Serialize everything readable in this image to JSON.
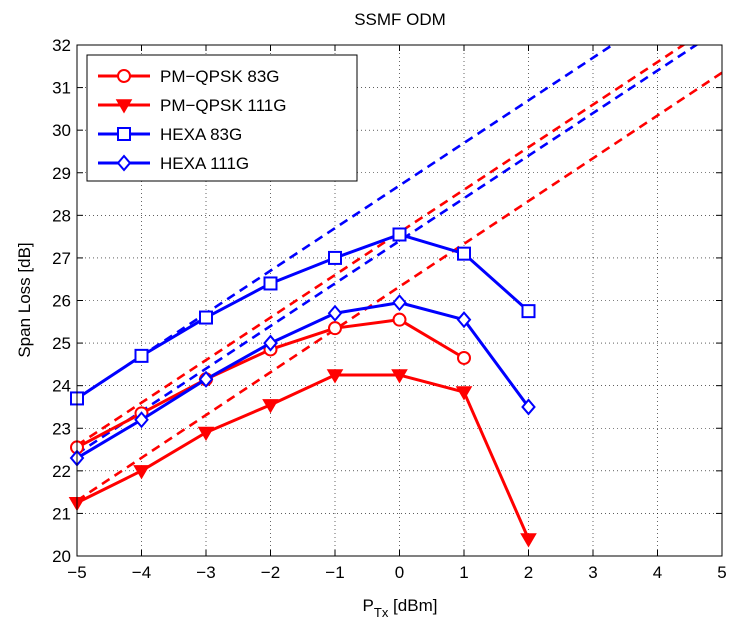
{
  "chart_data": {
    "type": "line",
    "title": "SSMF ODM",
    "xlabel": {
      "main": "P",
      "sub": "Tx",
      "unit": " [dBm]"
    },
    "ylabel": "Span Loss  [dB]",
    "xlim": [
      -5,
      5
    ],
    "ylim": [
      20,
      32
    ],
    "xticks": [
      -5,
      -4,
      -3,
      -2,
      -1,
      0,
      1,
      2,
      3,
      4,
      5
    ],
    "yticks": [
      20,
      21,
      22,
      23,
      24,
      25,
      26,
      27,
      28,
      29,
      30,
      31,
      32
    ],
    "xtick_labels": [
      "−5",
      "−4",
      "−3",
      "−2",
      "−1",
      "0",
      "1",
      "2",
      "3",
      "4",
      "5"
    ],
    "ytick_labels": [
      "20",
      "21",
      "22",
      "23",
      "24",
      "25",
      "26",
      "27",
      "28",
      "29",
      "30",
      "31",
      "32"
    ],
    "grid": true,
    "legend_position": "top-left",
    "series": [
      {
        "name": "PM−QPSK 83G",
        "color": "#ff0000",
        "marker": "circle",
        "x": [
          -5,
          -4,
          -3,
          -2,
          -1,
          0,
          1
        ],
        "y": [
          22.55,
          23.35,
          24.15,
          24.85,
          25.35,
          25.55,
          24.65
        ]
      },
      {
        "name": "PM−QPSK 111G",
        "color": "#ff0000",
        "marker": "triangle-down",
        "x": [
          -5,
          -4,
          -3,
          -2,
          -1,
          0,
          1,
          2
        ],
        "y": [
          21.25,
          22.0,
          22.9,
          23.55,
          24.25,
          24.25,
          23.85,
          20.4
        ]
      },
      {
        "name": "HEXA 83G",
        "color": "#0000ff",
        "marker": "square",
        "x": [
          -5,
          -4,
          -3,
          -2,
          -1,
          0,
          1,
          2
        ],
        "y": [
          23.7,
          24.7,
          25.6,
          26.4,
          27.0,
          27.55,
          27.1,
          25.75
        ]
      },
      {
        "name": "HEXA 111G",
        "color": "#0000ff",
        "marker": "diamond",
        "x": [
          -5,
          -4,
          -3,
          -2,
          -1,
          0,
          1,
          2
        ],
        "y": [
          22.3,
          23.2,
          24.15,
          25.0,
          25.7,
          25.95,
          25.55,
          23.5
        ]
      }
    ],
    "asymptotes": [
      {
        "color": "#ff0000",
        "x": [
          -5,
          5
        ],
        "y": [
          22.6,
          32.6
        ]
      },
      {
        "color": "#ff0000",
        "x": [
          -5,
          5
        ],
        "y": [
          21.3,
          31.35
        ]
      },
      {
        "color": "#0000ff",
        "x": [
          -5,
          5
        ],
        "y": [
          23.7,
          33.7
        ]
      },
      {
        "color": "#0000ff",
        "x": [
          -5,
          5
        ],
        "y": [
          22.4,
          32.4
        ]
      }
    ]
  }
}
